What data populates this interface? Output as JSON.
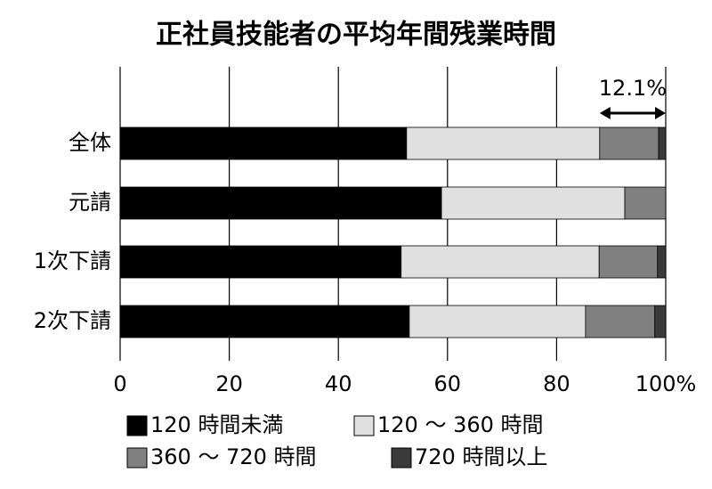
{
  "chart_data": {
    "type": "stacked-barh",
    "title": "正社員技能者の平均年間残業時間",
    "categories": [
      "全体",
      "元請",
      "1次下請",
      "2次下請"
    ],
    "series": [
      {
        "name": "120 時間未満",
        "color": "#000000",
        "values": [
          52.5,
          58.9,
          51.5,
          53.0
        ]
      },
      {
        "name": "120 ～ 360 時間",
        "color": "#e0e0e0",
        "values": [
          35.4,
          33.6,
          36.3,
          32.3
        ]
      },
      {
        "name": "360 ～ 720 時間",
        "color": "#808080",
        "values": [
          10.8,
          7.5,
          10.7,
          12.7
        ]
      },
      {
        "name": "720 時間以上",
        "color": "#3a3a3a",
        "values": [
          1.3,
          0,
          1.5,
          2.0
        ]
      }
    ],
    "xlim": [
      0,
      100
    ],
    "xticks": [
      0,
      20,
      40,
      60,
      80,
      {
        "value": 100,
        "label": "100%"
      }
    ],
    "grid": true,
    "annotation": "12.1%"
  }
}
